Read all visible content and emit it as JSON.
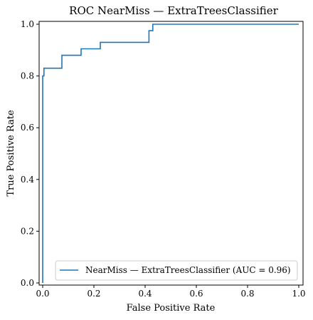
{
  "chart_data": {
    "type": "line",
    "title": "ROC NearMiss — ExtraTreesClassifier",
    "xlabel": "False Positive Rate",
    "ylabel": "True Positive Rate",
    "xlim": [
      0,
      1
    ],
    "ylim": [
      0,
      1
    ],
    "xticks": [
      "0.0",
      "0.2",
      "0.4",
      "0.6",
      "0.8",
      "1.0"
    ],
    "yticks": [
      "0.0",
      "0.2",
      "0.4",
      "0.6",
      "0.8",
      "1.0"
    ],
    "grid": false,
    "legend_position": "bottom-right",
    "series": [
      {
        "name": "NearMiss — ExtraTreesClassifier (AUC = 0.96)",
        "color": "#1f77b4",
        "x": [
          0.0,
          0.0,
          0.005,
          0.005,
          0.01,
          0.01,
          0.075,
          0.075,
          0.15,
          0.15,
          0.225,
          0.225,
          0.415,
          0.415,
          0.43,
          0.43,
          1.0
        ],
        "y": [
          0.0,
          0.8,
          0.8,
          0.83,
          0.83,
          0.83,
          0.83,
          0.88,
          0.88,
          0.905,
          0.905,
          0.93,
          0.93,
          0.975,
          0.975,
          1.0,
          1.0
        ]
      }
    ]
  }
}
